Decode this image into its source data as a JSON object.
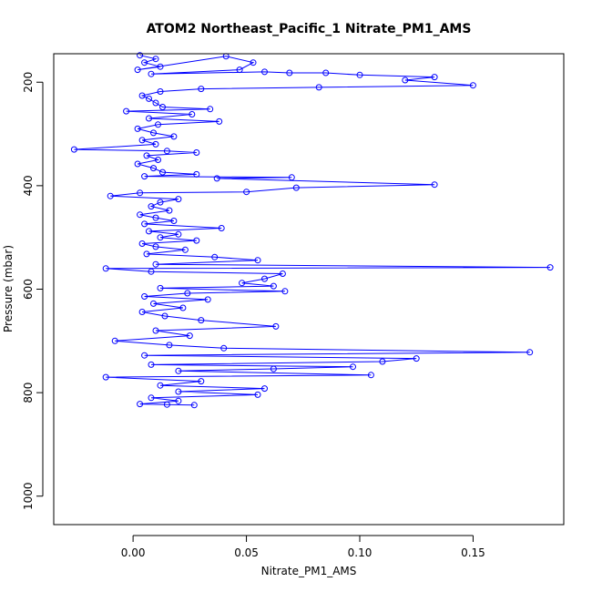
{
  "chart_data": {
    "type": "line",
    "title": "ATOM2 Northeast_Pacific_1 Nitrate_PM1_AMS",
    "xlabel": "Nitrate_PM1_AMS",
    "ylabel": "Pressure (mbar)",
    "xlim": [
      -0.035,
      0.19
    ],
    "ylim": [
      1055,
      145
    ],
    "y_reversed": true,
    "xticks": [
      0.0,
      0.05,
      0.1,
      0.15
    ],
    "xtick_labels": [
      "0.00",
      "0.05",
      "0.10",
      "0.15"
    ],
    "yticks": [
      200,
      400,
      600,
      800,
      1000
    ],
    "ytick_labels": [
      "200",
      "400",
      "600",
      "800",
      "1000"
    ],
    "grid": false,
    "legend": "none",
    "marker": "open-circle",
    "color": "#0000ff",
    "series": [
      {
        "points": [
          [
            0.003,
            148
          ],
          [
            0.01,
            155
          ],
          [
            0.005,
            162
          ],
          [
            0.012,
            170
          ],
          [
            0.002,
            176
          ],
          [
            0.041,
            150
          ],
          [
            0.053,
            162
          ],
          [
            0.047,
            176
          ],
          [
            0.008,
            184
          ],
          [
            0.058,
            180
          ],
          [
            0.069,
            182
          ],
          [
            0.085,
            182
          ],
          [
            0.1,
            186
          ],
          [
            0.133,
            190
          ],
          [
            0.12,
            196
          ],
          [
            0.15,
            206
          ],
          [
            0.082,
            210
          ],
          [
            0.03,
            213
          ],
          [
            0.012,
            218
          ],
          [
            0.004,
            226
          ],
          [
            0.007,
            232
          ],
          [
            0.01,
            240
          ],
          [
            0.013,
            248
          ],
          [
            0.034,
            252
          ],
          [
            -0.003,
            256
          ],
          [
            0.026,
            262
          ],
          [
            0.007,
            270
          ],
          [
            0.038,
            276
          ],
          [
            0.011,
            282
          ],
          [
            0.002,
            290
          ],
          [
            0.009,
            298
          ],
          [
            0.018,
            305
          ],
          [
            0.004,
            312
          ],
          [
            0.01,
            320
          ],
          [
            -0.026,
            330
          ],
          [
            0.015,
            333
          ],
          [
            0.028,
            336
          ],
          [
            0.006,
            342
          ],
          [
            0.011,
            350
          ],
          [
            0.002,
            358
          ],
          [
            0.009,
            366
          ],
          [
            0.013,
            374
          ],
          [
            0.028,
            378
          ],
          [
            0.005,
            382
          ],
          [
            0.07,
            384
          ],
          [
            0.037,
            386
          ],
          [
            0.133,
            398
          ],
          [
            0.072,
            404
          ],
          [
            0.05,
            412
          ],
          [
            0.003,
            414
          ],
          [
            -0.01,
            420
          ],
          [
            0.02,
            426
          ],
          [
            0.012,
            432
          ],
          [
            0.008,
            440
          ],
          [
            0.016,
            448
          ],
          [
            0.003,
            456
          ],
          [
            0.01,
            462
          ],
          [
            0.018,
            468
          ],
          [
            0.005,
            474
          ],
          [
            0.039,
            482
          ],
          [
            0.007,
            488
          ],
          [
            0.02,
            494
          ],
          [
            0.012,
            500
          ],
          [
            0.028,
            506
          ],
          [
            0.004,
            512
          ],
          [
            0.01,
            518
          ],
          [
            0.023,
            524
          ],
          [
            0.006,
            532
          ],
          [
            0.036,
            538
          ],
          [
            0.055,
            544
          ],
          [
            0.01,
            552
          ],
          [
            0.184,
            558
          ],
          [
            -0.012,
            560
          ],
          [
            0.008,
            566
          ],
          [
            0.066,
            570
          ],
          [
            0.058,
            580
          ],
          [
            0.048,
            588
          ],
          [
            0.062,
            594
          ],
          [
            0.012,
            598
          ],
          [
            0.067,
            604
          ],
          [
            0.024,
            608
          ],
          [
            0.005,
            614
          ],
          [
            0.033,
            620
          ],
          [
            0.009,
            628
          ],
          [
            0.022,
            636
          ],
          [
            0.004,
            644
          ],
          [
            0.014,
            652
          ],
          [
            0.03,
            660
          ],
          [
            0.063,
            672
          ],
          [
            0.01,
            680
          ],
          [
            0.025,
            690
          ],
          [
            -0.008,
            700
          ],
          [
            0.016,
            708
          ],
          [
            0.04,
            714
          ],
          [
            0.175,
            722
          ],
          [
            0.005,
            728
          ],
          [
            0.125,
            734
          ],
          [
            0.11,
            740
          ],
          [
            0.008,
            746
          ],
          [
            0.097,
            750
          ],
          [
            0.062,
            754
          ],
          [
            0.02,
            758
          ],
          [
            0.105,
            766
          ],
          [
            -0.012,
            770
          ],
          [
            0.03,
            778
          ],
          [
            0.012,
            786
          ],
          [
            0.058,
            792
          ],
          [
            0.02,
            798
          ],
          [
            0.055,
            804
          ],
          [
            0.008,
            810
          ],
          [
            0.02,
            816
          ],
          [
            0.003,
            822
          ],
          [
            0.015,
            823
          ],
          [
            0.027,
            824
          ]
        ]
      }
    ]
  }
}
